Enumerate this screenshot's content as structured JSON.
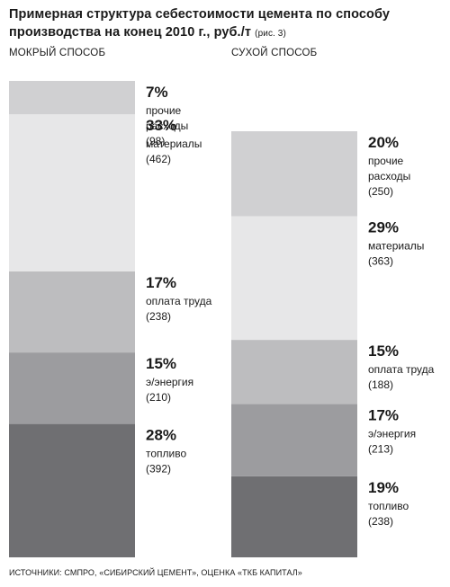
{
  "title": {
    "line1": "Примерная структура себестоимости цемента по способу",
    "line2": "производства на конец 2010 г., руб./т",
    "note": "(рис. 3)"
  },
  "source": "ИСТОЧНИКИ: СМПРО, «СИБИРСКИЙ ЦЕМЕНТ», ОЦЕНКА «ТКБ КАПИТАЛ»",
  "chart_data": [
    {
      "type": "bar",
      "stacked": true,
      "title": "МОКРЫЙ СПОСОБ",
      "total": 1400,
      "segments": [
        {
          "label": "топливо",
          "percent": "28%",
          "value": 392,
          "value_text": "(392)",
          "color": "#6f6f72"
        },
        {
          "label": "э/энергия",
          "percent": "15%",
          "value": 210,
          "value_text": "(210)",
          "color": "#9c9c9f"
        },
        {
          "label": "оплата труда",
          "percent": "17%",
          "value": 238,
          "value_text": "(238)",
          "color": "#bdbdbf"
        },
        {
          "label": "материалы",
          "percent": "33%",
          "value": 462,
          "value_text": "(462)",
          "color": "#e7e7e8"
        },
        {
          "label": "прочие расходы",
          "lines": [
            "прочие",
            "расходы"
          ],
          "percent": "7%",
          "value": 98,
          "value_text": "(98)",
          "color": "#d0d0d2"
        }
      ]
    },
    {
      "type": "bar",
      "stacked": true,
      "title": "СУХОЙ СПОСОБ",
      "total": 1252,
      "segments": [
        {
          "label": "топливо",
          "percent": "19%",
          "value": 238,
          "value_text": "(238)",
          "color": "#6f6f72"
        },
        {
          "label": "э/энергия",
          "percent": "17%",
          "value": 213,
          "value_text": "(213)",
          "color": "#9c9c9f"
        },
        {
          "label": "оплата труда",
          "percent": "15%",
          "value": 188,
          "value_text": "(188)",
          "color": "#bdbdbf"
        },
        {
          "label": "материалы",
          "percent": "29%",
          "value": 363,
          "value_text": "(363)",
          "color": "#e7e7e8"
        },
        {
          "label": "прочие расходы",
          "lines": [
            "прочие",
            "расходы"
          ],
          "percent": "20%",
          "value": 250,
          "value_text": "(250)",
          "color": "#d0d0d2"
        }
      ]
    }
  ]
}
